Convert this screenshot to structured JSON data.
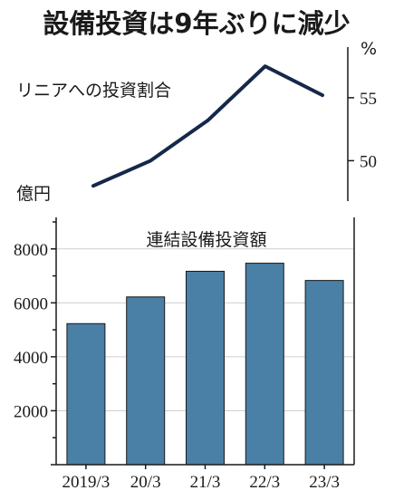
{
  "title": "設備投資は9年ぶりに減少",
  "colors": {
    "line": "#14284b",
    "bar": "#4a7fa6",
    "bar_edge": "#1a1a1a",
    "text": "#1a1a1a",
    "grid": "#cfcfcf"
  },
  "chart_data": [
    {
      "type": "line",
      "series": [
        {
          "name": "リニアへの投資割合",
          "values": [
            48,
            50,
            53.2,
            57.5,
            55.2
          ]
        }
      ],
      "ylabel": "%",
      "yticks": [
        50,
        55
      ],
      "ylim": [
        47.8,
        58.3
      ],
      "axis_side": "right"
    },
    {
      "type": "bar",
      "title": "連結設備投資額",
      "ylabel": "億円",
      "categories": [
        "2019/3",
        "20/3",
        "21/3",
        "22/3",
        "23/3"
      ],
      "values": [
        5230,
        6220,
        7170,
        7470,
        6830
      ],
      "yticks": [
        "2000",
        "4000",
        "6000",
        "8000"
      ],
      "ylim": [
        0,
        9000
      ],
      "grid": true
    }
  ]
}
